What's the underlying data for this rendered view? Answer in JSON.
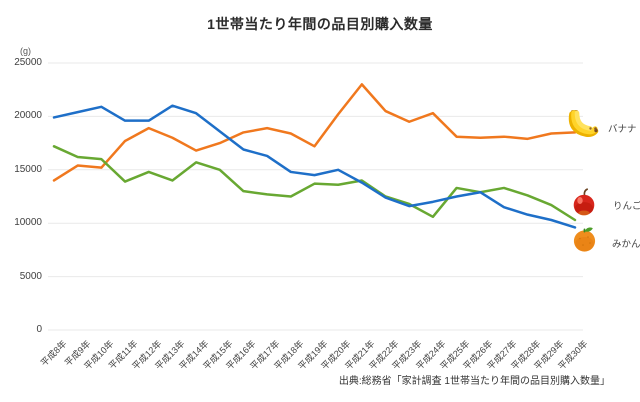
{
  "title": "1世帯当たり年間の品目別購入数量",
  "y_unit": "(g)",
  "source": "出典:総務省「家計調査 1世帯当たり年間の品目別購入数量」",
  "colors": {
    "banana": "#f0781e",
    "apple": "#68a832",
    "mikan": "#1e6fc8",
    "grid": "#e9e9e9"
  },
  "chart_data": {
    "type": "line",
    "categories": [
      "平成8年",
      "平成9年",
      "平成10年",
      "平成11年",
      "平成12年",
      "平成13年",
      "平成14年",
      "平成15年",
      "平成16年",
      "平成17年",
      "平成18年",
      "平成19年",
      "平成20年",
      "平成21年",
      "平成22年",
      "平成23年",
      "平成24年",
      "平成25年",
      "平成26年",
      "平成27年",
      "平成28年",
      "平成29年",
      "平成30年"
    ],
    "series": [
      {
        "name": "バナナ",
        "icon": "banana-icon",
        "color": "#f0781e",
        "values": [
          14000,
          15400,
          15200,
          17700,
          18900,
          18000,
          16800,
          17500,
          18500,
          18900,
          18400,
          17200,
          20200,
          23000,
          20500,
          19500,
          20300,
          18100,
          18000,
          18100,
          17900,
          18400,
          18500
        ]
      },
      {
        "name": "りんご",
        "icon": "apple-icon",
        "color": "#68a832",
        "values": [
          17200,
          16200,
          16000,
          13900,
          14800,
          14000,
          15700,
          15000,
          13000,
          12700,
          12500,
          13700,
          13600,
          14000,
          12500,
          11800,
          10600,
          13300,
          12900,
          13300,
          12600,
          11700,
          10300
        ]
      },
      {
        "name": "みかん",
        "icon": "mikan-icon",
        "color": "#1e6fc8",
        "values": [
          19900,
          20400,
          20900,
          19600,
          19600,
          21000,
          20300,
          18600,
          16900,
          16300,
          14800,
          14500,
          15000,
          13800,
          12400,
          11600,
          12000,
          12500,
          12900,
          11500,
          10800,
          10300,
          9600
        ]
      }
    ],
    "ylabel": "(g)",
    "ylim": [
      0,
      25000
    ],
    "yticks": [
      0,
      5000,
      10000,
      15000,
      20000,
      25000
    ],
    "grid": true,
    "legend_position": "right"
  }
}
